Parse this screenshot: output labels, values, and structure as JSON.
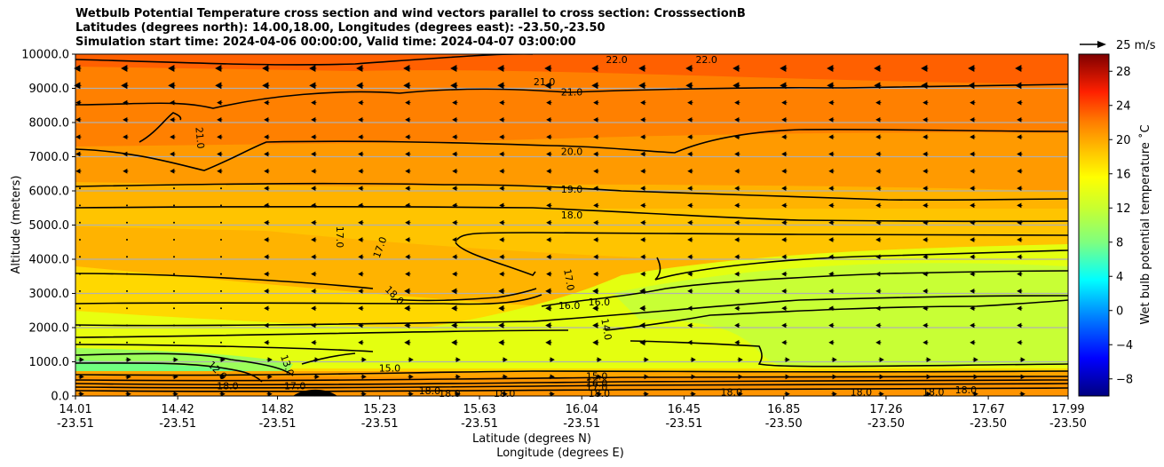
{
  "chart_data": {
    "type": "heatmap",
    "title_lines": [
      "Wetbulb Potential Temperature cross section and wind vectors parallel to cross section: CrosssectionB",
      "Latitudes (degrees north): 14.00,18.00, Longitudes (degrees east): -23.50,-23.50",
      "Simulation start time: 2024-04-06 00:00:00, Valid time: 2024-04-07 03:00:00"
    ],
    "ylabel": "Altitude (meters)",
    "xlabel_lines": [
      "Latitude (degrees N)",
      "Longitude (degrees E)"
    ],
    "ylim": [
      0,
      10000
    ],
    "y_ticks": [
      0,
      1000,
      2000,
      3000,
      4000,
      5000,
      6000,
      7000,
      8000,
      9000,
      10000
    ],
    "y_tick_labels": [
      "0.0",
      "1000.0",
      "2000.0",
      "3000.0",
      "4000.0",
      "5000.0",
      "6000.0",
      "7000.0",
      "8000.0",
      "9000.0",
      "10000.0"
    ],
    "xlim": [
      14.01,
      17.99
    ],
    "x_ticks": [
      {
        "lat": "14.01",
        "lon": "-23.51"
      },
      {
        "lat": "14.42",
        "lon": "-23.51"
      },
      {
        "lat": "14.82",
        "lon": "-23.51"
      },
      {
        "lat": "15.23",
        "lon": "-23.51"
      },
      {
        "lat": "15.63",
        "lon": "-23.51"
      },
      {
        "lat": "16.04",
        "lon": "-23.51"
      },
      {
        "lat": "16.45",
        "lon": "-23.51"
      },
      {
        "lat": "16.85",
        "lon": "-23.50"
      },
      {
        "lat": "17.26",
        "lon": "-23.50"
      },
      {
        "lat": "17.67",
        "lon": "-23.50"
      },
      {
        "lat": "17.99",
        "lon": "-23.50"
      }
    ],
    "grid": "horizontal",
    "colorbar": {
      "label": "Wet bulb potential temperature ˚C",
      "range": [
        -10,
        30
      ],
      "ticks": [
        -8,
        -4,
        0,
        4,
        8,
        12,
        16,
        20,
        24,
        28
      ],
      "tick_labels": [
        "−8",
        "−4",
        "0",
        "4",
        "8",
        "12",
        "16",
        "20",
        "24",
        "28"
      ]
    },
    "quiver_key_label": "25 m/s",
    "contour_labels": [
      {
        "text": "22.0",
        "lat": 16.18,
        "alt": 9850
      },
      {
        "text": "22.0",
        "lat": 16.54,
        "alt": 9850
      },
      {
        "text": "21.0",
        "lat": 15.89,
        "alt": 9200
      },
      {
        "text": "21.0",
        "lat": 16.0,
        "alt": 8900
      },
      {
        "text": "21.0",
        "lat": 14.51,
        "alt": 7550,
        "rotate": 85
      },
      {
        "text": "20.0",
        "lat": 16.0,
        "alt": 7150
      },
      {
        "text": "19.0",
        "lat": 16.0,
        "alt": 6050
      },
      {
        "text": "18.0",
        "lat": 16.0,
        "alt": 5300
      },
      {
        "text": "17.0",
        "lat": 15.07,
        "alt": 4650,
        "rotate": 90
      },
      {
        "text": "17.0",
        "lat": 15.23,
        "alt": 4350,
        "rotate": -70
      },
      {
        "text": "18.0",
        "lat": 15.29,
        "alt": 2950,
        "rotate": 45
      },
      {
        "text": "17.0",
        "lat": 15.99,
        "alt": 3400,
        "rotate": 80
      },
      {
        "text": "16.0",
        "lat": 15.99,
        "alt": 2650
      },
      {
        "text": "16.0",
        "lat": 16.11,
        "alt": 2750
      },
      {
        "text": "14.0",
        "lat": 16.14,
        "alt": 1950,
        "rotate": 80
      },
      {
        "text": "13.0",
        "lat": 14.86,
        "alt": 900,
        "rotate": 70
      },
      {
        "text": "12.0",
        "lat": 14.58,
        "alt": 750,
        "rotate": 45
      },
      {
        "text": "15.0",
        "lat": 15.27,
        "alt": 820
      },
      {
        "text": "15.0",
        "lat": 16.1,
        "alt": 580
      },
      {
        "text": "16.0",
        "lat": 16.1,
        "alt": 380
      },
      {
        "text": "17.0",
        "lat": 16.1,
        "alt": 260
      },
      {
        "text": "18.0",
        "lat": 16.11,
        "alt": 80
      },
      {
        "text": "18.0",
        "lat": 14.62,
        "alt": 300
      },
      {
        "text": "17.0",
        "lat": 14.89,
        "alt": 300
      },
      {
        "text": "18.0",
        "lat": 15.43,
        "alt": 150
      },
      {
        "text": "18.0",
        "lat": 15.51,
        "alt": 80
      },
      {
        "text": "18.0",
        "lat": 15.73,
        "alt": 80
      },
      {
        "text": "18.0",
        "lat": 16.64,
        "alt": 120
      },
      {
        "text": "18.0",
        "lat": 17.16,
        "alt": 120
      },
      {
        "text": "18.0",
        "lat": 17.45,
        "alt": 120
      },
      {
        "text": "18.0",
        "lat": 17.58,
        "alt": 180
      }
    ]
  }
}
